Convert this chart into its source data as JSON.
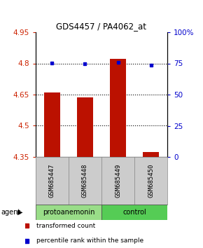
{
  "title": "GDS4457 / PA4062_at",
  "samples": [
    "GSM685447",
    "GSM685448",
    "GSM685449",
    "GSM685450"
  ],
  "bar_values": [
    4.66,
    4.635,
    4.822,
    4.373
  ],
  "bar_base": 4.35,
  "percentile_values": [
    4.801,
    4.797,
    4.805,
    4.792
  ],
  "bar_color": "#bb1100",
  "dot_color": "#0000cc",
  "ylim_left": [
    4.35,
    4.95
  ],
  "ylim_right": [
    0,
    100
  ],
  "yticks_left": [
    4.35,
    4.5,
    4.65,
    4.8,
    4.95
  ],
  "yticks_right": [
    0,
    25,
    50,
    75,
    100
  ],
  "ytick_labels_right": [
    "0",
    "25",
    "50",
    "75",
    "100%"
  ],
  "grid_values": [
    4.5,
    4.65,
    4.8
  ],
  "groups": [
    {
      "label": "protoanemonin",
      "samples": [
        0,
        1
      ],
      "color": "#99dd88"
    },
    {
      "label": "control",
      "samples": [
        2,
        3
      ],
      "color": "#55cc55"
    }
  ],
  "agent_label": "agent",
  "legend_bar_label": "transformed count",
  "legend_dot_label": "percentile rank within the sample",
  "background_color": "#ffffff",
  "plot_bg": "#ffffff",
  "sample_box_color": "#cccccc",
  "bar_width": 0.5
}
